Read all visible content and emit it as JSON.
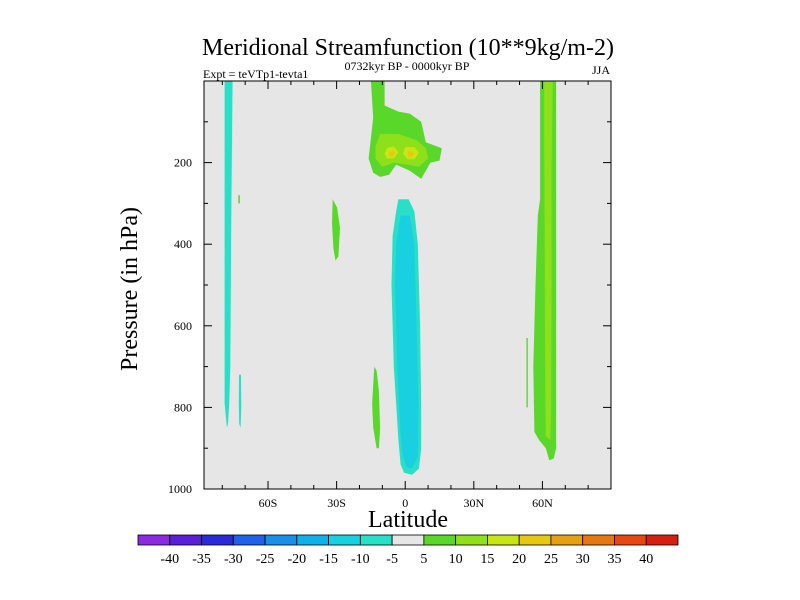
{
  "chart_data": {
    "type": "contour",
    "title": "Meridional Streamfunction (10**9kg/m-2)",
    "left_subtitle": "Expt = teVTp1-tevta1",
    "center_subtitle": "0732kyr BP - 0000kyr BP",
    "right_subtitle": "JJA",
    "xlabel": "Latitude",
    "ylabel": "Pressure (in hPa)",
    "x_ticks": [
      {
        "value": -60,
        "label": "60S"
      },
      {
        "value": -30,
        "label": "30S"
      },
      {
        "value": 0,
        "label": "0"
      },
      {
        "value": 30,
        "label": "30N"
      },
      {
        "value": 60,
        "label": "60N"
      }
    ],
    "y_ticks": [
      {
        "value": 200,
        "label": "200"
      },
      {
        "value": 400,
        "label": "400"
      },
      {
        "value": 600,
        "label": "600"
      },
      {
        "value": 800,
        "label": "800"
      },
      {
        "value": 1000,
        "label": "1000"
      }
    ],
    "xlim": [
      -88,
      90
    ],
    "ylim": [
      1000,
      0
    ],
    "background_color": "#e6e6e6",
    "colorbar": {
      "levels": [
        "-40",
        "-35",
        "-30",
        "-25",
        "-20",
        "-15",
        "-10",
        "-5",
        "5",
        "10",
        "15",
        "20",
        "25",
        "30",
        "35",
        "40"
      ],
      "colors": [
        "#8a2be2",
        "#5a1fd6",
        "#2a2ad6",
        "#1f62e8",
        "#1a8fe8",
        "#10b0e8",
        "#18d0e0",
        "#28e0c8",
        "#e6e6e6",
        "#5ad82a",
        "#8ee01a",
        "#c8e614",
        "#e6c814",
        "#e6a014",
        "#e67814",
        "#e64814",
        "#d42010"
      ]
    },
    "regions": [
      {
        "name": "sh-polar-negative-column",
        "value": -7,
        "color": "#28e0c8",
        "points": [
          [
            -79,
            0
          ],
          [
            -75.5,
            0
          ],
          [
            -76,
            300
          ],
          [
            -76.5,
            700
          ],
          [
            -77,
            790
          ],
          [
            -77.5,
            840
          ],
          [
            -78,
            850
          ],
          [
            -79,
            790
          ],
          [
            -79,
            300
          ]
        ]
      },
      {
        "name": "sh-polar-positive-streak",
        "value": 7,
        "color": "#5ad82a",
        "points": [
          [
            -73,
            280
          ],
          [
            -72.3,
            280
          ],
          [
            -72.3,
            300
          ],
          [
            -73,
            300
          ]
        ]
      },
      {
        "name": "sh-polar-negative-drip",
        "value": -7,
        "color": "#28e0c8",
        "points": [
          [
            -72.7,
            720
          ],
          [
            -71.8,
            720
          ],
          [
            -71.7,
            800
          ],
          [
            -72,
            850
          ],
          [
            -72.6,
            840
          ],
          [
            -72.8,
            790
          ]
        ]
      },
      {
        "name": "sh-midlat-positive-lobe",
        "value": 7,
        "color": "#5ad82a",
        "points": [
          [
            -31.7,
            290
          ],
          [
            -29.8,
            310
          ],
          [
            -28.5,
            360
          ],
          [
            -29.2,
            430
          ],
          [
            -30.5,
            440
          ],
          [
            -31.4,
            410
          ],
          [
            -32,
            350
          ]
        ]
      },
      {
        "name": "equatorial-upper-positive-cell",
        "value": 8,
        "color": "#5ad82a",
        "points": [
          [
            -15,
            0
          ],
          [
            -9,
            0
          ],
          [
            -9,
            60
          ],
          [
            -3,
            75
          ],
          [
            2,
            80
          ],
          [
            7,
            100
          ],
          [
            9,
            150
          ],
          [
            16,
            165
          ],
          [
            15,
            195
          ],
          [
            11,
            200
          ],
          [
            9,
            220
          ],
          [
            7,
            240
          ],
          [
            2,
            220
          ],
          [
            -4,
            205
          ],
          [
            -7,
            230
          ],
          [
            -11,
            235
          ],
          [
            -14,
            225
          ],
          [
            -16,
            190
          ],
          [
            -15,
            140
          ],
          [
            -14,
            90
          ]
        ]
      },
      {
        "name": "equatorial-upper-positive-core",
        "value": 12,
        "color": "#8ee01a",
        "points": [
          [
            -11,
            130
          ],
          [
            -3,
            130
          ],
          [
            5,
            145
          ],
          [
            9,
            165
          ],
          [
            10,
            190
          ],
          [
            6,
            210
          ],
          [
            1,
            205
          ],
          [
            -5,
            200
          ],
          [
            -10,
            210
          ],
          [
            -13,
            190
          ],
          [
            -13,
            160
          ]
        ]
      },
      {
        "name": "equatorial-upper-positive-peak-a",
        "value": 17,
        "color": "#c8e614",
        "points": [
          [
            -8,
            165
          ],
          [
            -5,
            160
          ],
          [
            -3,
            175
          ],
          [
            -5,
            190
          ],
          [
            -8,
            190
          ],
          [
            -9,
            178
          ]
        ]
      },
      {
        "name": "equatorial-upper-positive-peak-b",
        "value": 17,
        "color": "#c8e614",
        "points": [
          [
            0,
            162
          ],
          [
            4,
            162
          ],
          [
            6,
            176
          ],
          [
            4,
            192
          ],
          [
            1,
            192
          ],
          [
            -1,
            178
          ]
        ]
      },
      {
        "name": "equatorial-upper-positive-center-a",
        "value": 22,
        "color": "#e6c814",
        "points": [
          [
            -7,
            172
          ],
          [
            -5,
            172
          ],
          [
            -4.5,
            178
          ],
          [
            -5.5,
            185
          ],
          [
            -7,
            184
          ]
        ]
      },
      {
        "name": "equatorial-upper-positive-center-b",
        "value": 22,
        "color": "#e6c814",
        "points": [
          [
            1,
            172
          ],
          [
            3,
            172
          ],
          [
            4,
            178
          ],
          [
            3,
            186
          ],
          [
            1.5,
            186
          ]
        ]
      },
      {
        "name": "equatorial-lower-positive-lobe",
        "value": 7,
        "color": "#5ad82a",
        "points": [
          [
            -13.5,
            700
          ],
          [
            -12.5,
            710
          ],
          [
            -11.5,
            760
          ],
          [
            -11,
            850
          ],
          [
            -11.5,
            900
          ],
          [
            -12.5,
            900
          ],
          [
            -14,
            850
          ],
          [
            -14.5,
            790
          ]
        ]
      },
      {
        "name": "equatorial-negative-column-outer",
        "value": -7,
        "color": "#28e0c8",
        "points": [
          [
            -3,
            290
          ],
          [
            1.5,
            290
          ],
          [
            4,
            320
          ],
          [
            5.5,
            400
          ],
          [
            6.5,
            600
          ],
          [
            7,
            800
          ],
          [
            7,
            900
          ],
          [
            6,
            950
          ],
          [
            3,
            965
          ],
          [
            -0.5,
            960
          ],
          [
            -2,
            940
          ],
          [
            -3,
            880
          ],
          [
            -5,
            700
          ],
          [
            -6,
            500
          ],
          [
            -5.5,
            380
          ],
          [
            -4,
            320
          ]
        ]
      },
      {
        "name": "equatorial-negative-column-inner",
        "value": -12,
        "color": "#18d0e0",
        "points": [
          [
            -2,
            330
          ],
          [
            2,
            330
          ],
          [
            4,
            400
          ],
          [
            5,
            600
          ],
          [
            5.8,
            800
          ],
          [
            5.5,
            920
          ],
          [
            3,
            950
          ],
          [
            0.5,
            945
          ],
          [
            -1,
            920
          ],
          [
            -2,
            870
          ],
          [
            -3.5,
            700
          ],
          [
            -4.5,
            500
          ],
          [
            -4,
            400
          ]
        ]
      },
      {
        "name": "nh-subpolar-positive-speck",
        "value": 7,
        "color": "#5ad82a",
        "points": [
          [
            53,
            630
          ],
          [
            53.6,
            630
          ],
          [
            53.6,
            800
          ],
          [
            53,
            800
          ]
        ]
      },
      {
        "name": "nh-polar-positive-column",
        "value": 8,
        "color": "#5ad82a",
        "points": [
          [
            59,
            0
          ],
          [
            66,
            0
          ],
          [
            66,
            300
          ],
          [
            66,
            600
          ],
          [
            66,
            900
          ],
          [
            65,
            925
          ],
          [
            63,
            930
          ],
          [
            61.5,
            900
          ],
          [
            58.5,
            880
          ],
          [
            56.5,
            860
          ],
          [
            56,
            700
          ],
          [
            57,
            500
          ],
          [
            58,
            330
          ],
          [
            59,
            290
          ],
          [
            59,
            150
          ]
        ]
      },
      {
        "name": "nh-polar-positive-core",
        "value": 12,
        "color": "#8ee01a",
        "points": [
          [
            60.8,
            0
          ],
          [
            64.5,
            0
          ],
          [
            64,
            200
          ],
          [
            64,
            500
          ],
          [
            63.8,
            800
          ],
          [
            63.5,
            880
          ],
          [
            61.5,
            870
          ],
          [
            61.2,
            700
          ],
          [
            61,
            400
          ],
          [
            60.8,
            150
          ]
        ]
      }
    ]
  }
}
